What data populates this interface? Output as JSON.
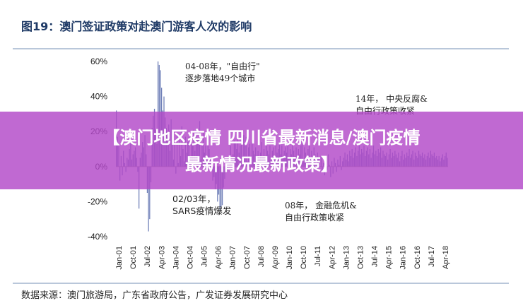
{
  "figure": {
    "title": "图19：澳门签证政策对赴澳门游客人次的影响",
    "source": "数据来源：澳门旅游局，广东省政府公告，广发证券发展研究中心"
  },
  "annotations": {
    "a1_line1": "04-08年，\"自由行\"",
    "a1_line2": "逐步落地49个城市",
    "a2_line1": "14年，  中央反腐&",
    "a2_line2": "自由行政策收紧",
    "a3_line1": "02/03年，",
    "a3_line2": "SARS疫情爆发",
    "a4_line1": "08年，  金融危机&",
    "a4_line2": "自由行政策收紧"
  },
  "banner": {
    "line1": "【澳门地区疫情 四川省最新消息/澳门疫情",
    "line2": "最新情况最新政策】"
  },
  "chart_data": {
    "type": "bar",
    "series": [
      {
        "values": [
          0.32,
          0.17,
          0.12,
          -0.08,
          0.06,
          -0.05,
          0.09,
          0.02,
          -0.03,
          0.05,
          0.04,
          0.1,
          0.15,
          0.04,
          0.07,
          0.09,
          0.11,
          0.05,
          -0.03,
          -0.24,
          0.05,
          0.08,
          0.14,
          0.11,
          0.18,
          0.07,
          -0.15,
          -0.37,
          -0.3,
          -0.09,
          0.22,
          0.29,
          0.33,
          0.21,
          0.13,
          0.6,
          0.58,
          0.55,
          0.45,
          0.32,
          0.4,
          0.28,
          0.22,
          0.17,
          0.24,
          0.09,
          0.27,
          0.14,
          0.04,
          0.13,
          -0.04,
          0.19,
          0.02,
          0.15,
          0.06,
          0.23,
          0.1,
          0.03,
          0.17,
          0.08,
          0.14,
          0.17,
          0.05,
          0.2,
          0.13,
          0.21,
          0.09,
          0.21,
          0.15,
          0.16,
          0.26,
          0.04,
          0.12,
          0.2,
          0.08,
          0.12,
          0.06,
          0.16,
          0.1,
          0.05,
          -0.02,
          -0.08,
          -0.06,
          -0.13,
          -0.1,
          -0.2,
          -0.16,
          -0.25,
          -0.23,
          -0.22,
          -0.12,
          -0.07,
          -0.03,
          -0.02,
          0.05,
          0.03,
          0.12,
          0.05,
          0.07,
          0.15,
          0.14,
          0.1,
          0.16,
          0.08,
          0.12,
          0.19,
          0.06,
          0.18,
          0.12,
          0.17,
          0.03,
          0.11,
          0.13,
          0.06,
          0.14,
          0.09,
          0.07,
          0.11,
          0.05,
          0.09,
          0.04,
          0.08,
          0.14,
          0.06,
          0.1,
          0.04,
          0.13,
          0.09,
          0.07,
          0.12,
          0.05,
          0.09,
          0.11,
          0.06,
          0.13,
          0.08,
          0.1,
          0.14,
          0.07,
          0.12,
          0.06,
          0.09,
          0.11,
          0.08,
          0.13,
          0.05,
          0.1,
          0.07,
          0.12,
          0.09,
          0.06,
          0.11,
          0.04,
          0.1,
          0.07,
          0.12,
          0.15,
          0.03,
          0.11,
          0.08,
          0.06,
          0.1,
          0.13,
          0.05,
          0.09,
          0.04,
          0.11,
          0.07,
          0.02,
          0.08,
          0.05,
          0.0,
          0.06,
          -0.03,
          0.02,
          -0.05,
          0.04,
          -0.02,
          0.07,
          0.01,
          -0.06,
          0.03,
          -0.04,
          0.05,
          0.02,
          -0.03,
          0.04,
          0.01,
          0.06,
          -0.02,
          0.03,
          0.05,
          0.08,
          0.04,
          0.07,
          0.03,
          0.09,
          0.06,
          0.1,
          0.05,
          0.08,
          0.11,
          0.06,
          0.09,
          0.12,
          0.07,
          0.1,
          0.08,
          0.12,
          0.06,
          0.09,
          0.11,
          0.07,
          0.1,
          0.05,
          0.08,
          0.12,
          0.07,
          0.09,
          0.06,
          0.1,
          0.08,
          0.11,
          0.05,
          0.09,
          0.07,
          0.06,
          0.08,
          0.04,
          0.07,
          0.1,
          0.05,
          0.08,
          0.06,
          0.09,
          0.07,
          0.05,
          0.08,
          0.03,
          0.06,
          0.09,
          0.04,
          0.07,
          0.05,
          0.08,
          0.06,
          0.1,
          0.05,
          0.07,
          0.09,
          0.04,
          0.08,
          0.06,
          0.05,
          0.09,
          0.07,
          0.06,
          0.08,
          0.05,
          0.07,
          0.04,
          0.06,
          0.08,
          0.05,
          0.09,
          0.07,
          0.06,
          0.08,
          0.05,
          0.06,
          0.04,
          0.06,
          0.03,
          0.05,
          0.07,
          0.04,
          0.06,
          0.08,
          0.05
        ]
      }
    ],
    "x_tick_labels": [
      "Jan-01",
      "Oct-01",
      "Jul-02",
      "Apr-03",
      "Jan-04",
      "Oct-04",
      "Jul-05",
      "Apr-06",
      "Jan-07",
      "Oct-07",
      "Jul-08",
      "Apr-09",
      "Jan-10",
      "Oct-10",
      "Jul-11",
      "Apr-12",
      "Jan-13",
      "Oct-13",
      "Jul-14",
      "Apr-15",
      "Jan-16",
      "Oct-16",
      "Jul-17",
      "Apr-18"
    ],
    "y_tick_labels": [
      "60%",
      "40%",
      "20%",
      "0%",
      "-20%",
      "-40%"
    ],
    "y_ticks": [
      0.6,
      0.4,
      0.2,
      0.0,
      -0.2,
      -0.4
    ],
    "ylim": [
      -0.4,
      0.6
    ],
    "bar_color": "#6f7fb8",
    "grid": false,
    "title": "",
    "xlabel": "",
    "ylabel": ""
  }
}
